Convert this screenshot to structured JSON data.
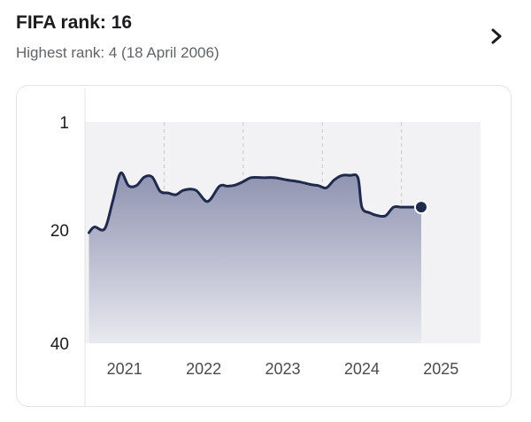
{
  "header": {
    "title": "FIFA rank: 16",
    "subtitle": "Highest rank: 4 (18 April 2006)"
  },
  "colors": {
    "line": "#1f2a4d",
    "fill_top": "#8e93b0",
    "fill_bottom": "#e9e9f0",
    "plot_bg": "#f2f2f4",
    "gridline": "#c8c8cc"
  },
  "chart_data": {
    "type": "area",
    "title": "",
    "xlabel": "",
    "ylabel": "",
    "y_inverted": true,
    "ylim": [
      1,
      40
    ],
    "y_ticks": [
      1,
      20,
      40
    ],
    "x_ticks": [
      "2021",
      "2022",
      "2023",
      "2024",
      "2025"
    ],
    "x_tick_values": [
      2021,
      2022,
      2023,
      2024,
      2025
    ],
    "xlim": [
      2020.5,
      2025.5
    ],
    "grid_x": true,
    "series": [
      {
        "x": [
          2020.55,
          2020.62,
          2020.75,
          2020.85,
          2020.95,
          2021.05,
          2021.15,
          2021.25,
          2021.35,
          2021.45,
          2021.55,
          2021.65,
          2021.75,
          2021.9,
          2022.05,
          2022.2,
          2022.3,
          2022.4,
          2022.5,
          2022.6,
          2022.75,
          2022.9,
          2023.05,
          2023.2,
          2023.35,
          2023.45,
          2023.55,
          2023.65,
          2023.75,
          2023.85,
          2023.95,
          2024.0,
          2024.1,
          2024.2,
          2024.3,
          2024.4,
          2024.5,
          2024.6,
          2024.7,
          2024.75
        ],
        "y": [
          20.5,
          19.5,
          19.8,
          15.0,
          10.0,
          12.2,
          12.2,
          10.7,
          10.7,
          13.2,
          13.5,
          13.8,
          13.0,
          13.0,
          15.0,
          12.3,
          12.3,
          12.1,
          11.5,
          10.8,
          10.8,
          10.8,
          11.2,
          11.5,
          12.0,
          12.2,
          12.6,
          11.2,
          10.4,
          10.4,
          10.8,
          16.0,
          17.0,
          17.5,
          17.5,
          16.0,
          16.0,
          16.0,
          16.0,
          16.0
        ]
      }
    ],
    "last_value": 16
  }
}
